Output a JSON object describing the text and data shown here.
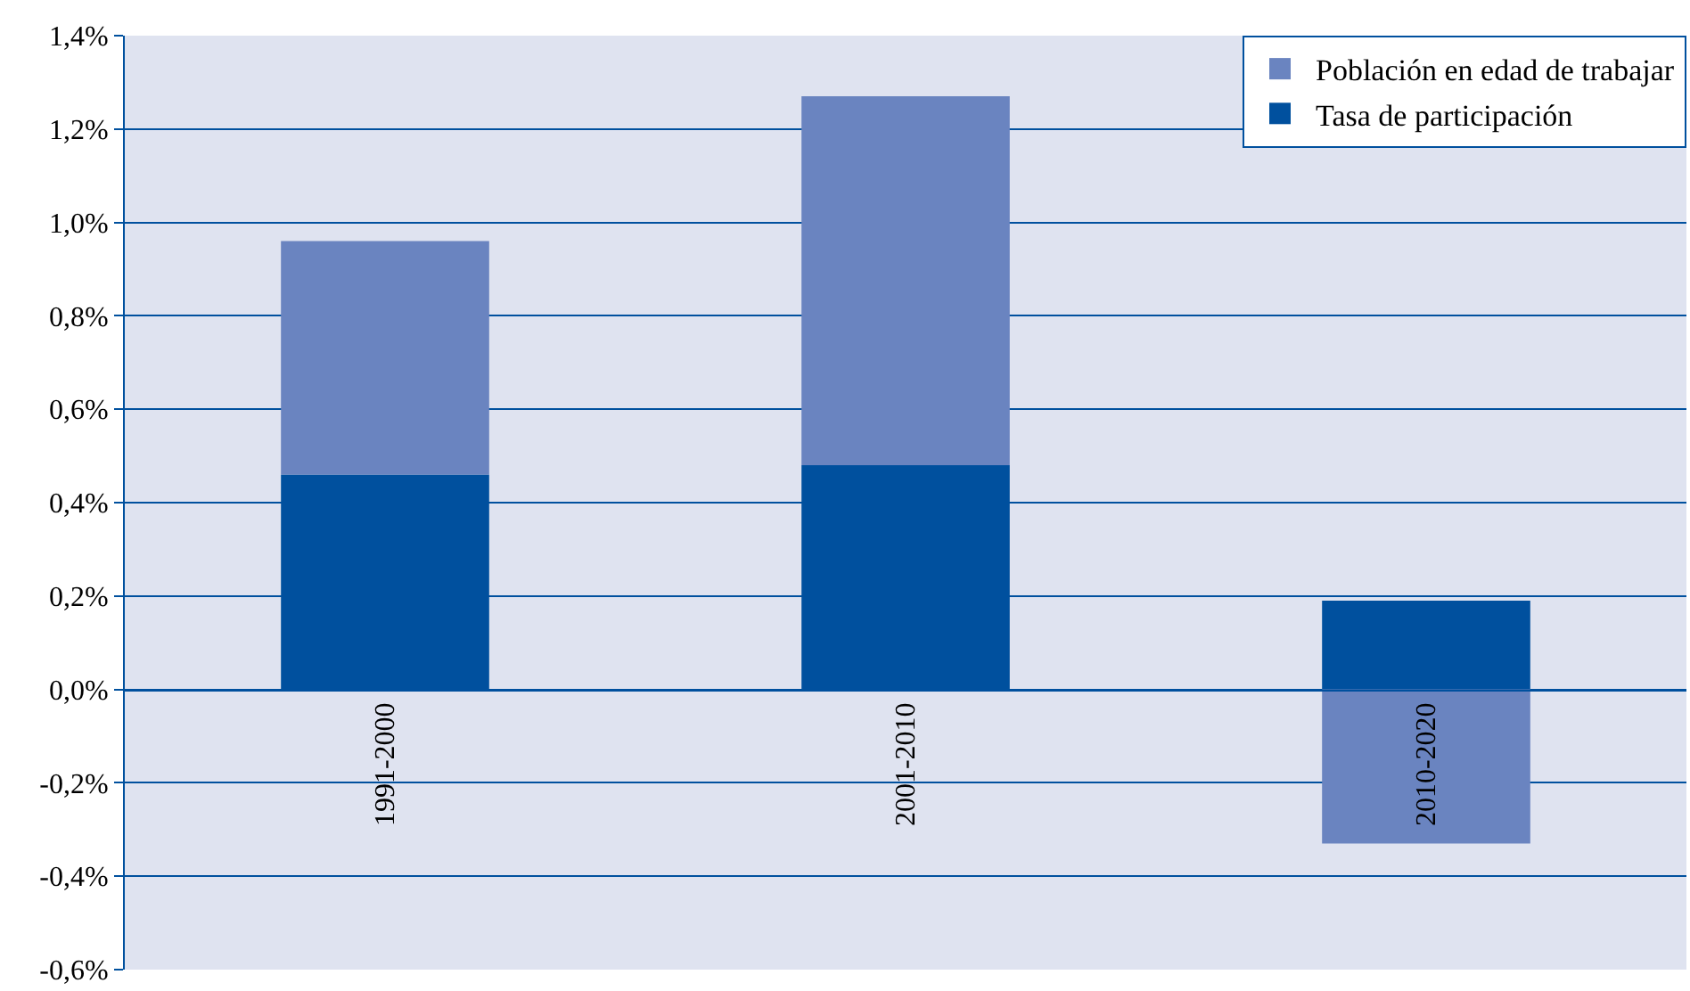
{
  "chart_data": {
    "type": "bar",
    "stacked": true,
    "categories": [
      "1991-2000",
      "2001-2010",
      "2010-2020"
    ],
    "series": [
      {
        "name": "Tasa de participación",
        "color": "#00509e",
        "values": [
          0.46,
          0.48,
          0.19
        ]
      },
      {
        "name": "Población en edad de trabajar",
        "color": "#6a84c0",
        "values": [
          0.5,
          0.79,
          -0.33
        ]
      }
    ],
    "ylim": [
      -0.6,
      1.4
    ],
    "yticks": [
      {
        "value": -0.6,
        "label": "-0,6%"
      },
      {
        "value": -0.4,
        "label": "-0,4%"
      },
      {
        "value": -0.2,
        "label": "-0,2%"
      },
      {
        "value": 0,
        "label": "0,0%"
      },
      {
        "value": 0.2,
        "label": "0,2%"
      },
      {
        "value": 0.4,
        "label": "0,4%"
      },
      {
        "value": 0.6,
        "label": "0,6%"
      },
      {
        "value": 0.8,
        "label": "0,8%"
      },
      {
        "value": 1.0,
        "label": "1,0%"
      },
      {
        "value": 1.2,
        "label": "1,2%"
      },
      {
        "value": 1.4,
        "label": "1,4%"
      }
    ],
    "grid": "y",
    "legend": "top right"
  }
}
